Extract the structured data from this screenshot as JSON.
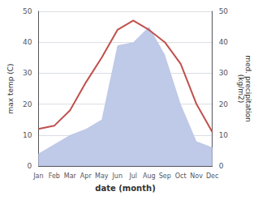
{
  "chart_data": {
    "type": "line",
    "categories": [
      "Jan",
      "Feb",
      "Mar",
      "Apr",
      "May",
      "Jun",
      "Jul",
      "Aug",
      "Sep",
      "Oct",
      "Nov",
      "Dec"
    ],
    "xlabel": "date (month)",
    "ylabel": "max temp (C)",
    "y2label": "med. precipitation\n(kg/m2)",
    "ylim": [
      0,
      50
    ],
    "yticks": [
      0,
      10,
      20,
      30,
      40,
      50
    ],
    "y2lim": [
      0,
      50
    ],
    "y2ticks": [
      0,
      10,
      20,
      30,
      40,
      50
    ],
    "grid": true,
    "series": [
      {
        "type": "area",
        "color": "#bfc9e8",
        "axis": "y2",
        "values": [
          4,
          7,
          10,
          12,
          15,
          39,
          40,
          45,
          36,
          20,
          8,
          6
        ]
      },
      {
        "type": "line",
        "color": "#c0504d",
        "values": [
          12,
          13,
          18,
          27,
          35,
          44,
          47,
          44,
          40,
          33,
          20,
          11
        ]
      }
    ]
  }
}
